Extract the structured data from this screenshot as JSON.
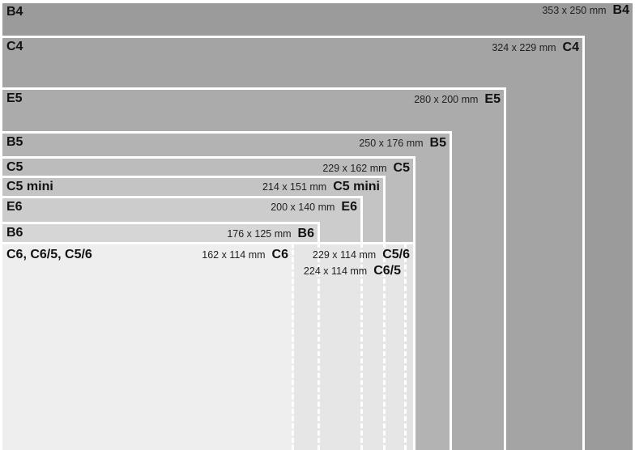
{
  "envelopes": [
    {
      "name": "B4",
      "size": "353 x 250 mm",
      "fill": "#9b9b9b",
      "show_left": true
    },
    {
      "name": "C4",
      "size": "324 x 229 mm",
      "fill": "#a4a4a4",
      "show_left": true
    },
    {
      "name": "E5",
      "size": "280 x 200 mm",
      "fill": "#ababab",
      "show_left": true
    },
    {
      "name": "B5",
      "size": "250 x 176 mm",
      "fill": "#b3b3b3",
      "show_left": true
    },
    {
      "name": "C5",
      "size": "229 x 162 mm",
      "fill": "#bcbcbc",
      "show_left": true
    },
    {
      "name": "C5 mini",
      "size": "214 x 151 mm",
      "fill": "#c4c4c4",
      "show_left": true
    },
    {
      "name": "E6",
      "size": "200 x 140 mm",
      "fill": "#cccccc",
      "show_left": true
    },
    {
      "name": "B6",
      "size": "176 x 125 mm",
      "fill": "#d6d6d6",
      "show_left": true
    },
    {
      "name": "C5/6",
      "size": "229 x 114 mm",
      "fill": "#e3e3e3",
      "show_left": false
    },
    {
      "name": "C6/5",
      "size": "224 x 114 mm",
      "fill": "#e3e3e3",
      "show_left": false
    },
    {
      "name": "C6",
      "size": "162 x 114 mm",
      "fill": "#eeeeee",
      "show_left": false
    }
  ],
  "combined_label": "C6, C6/5, C5/6"
}
